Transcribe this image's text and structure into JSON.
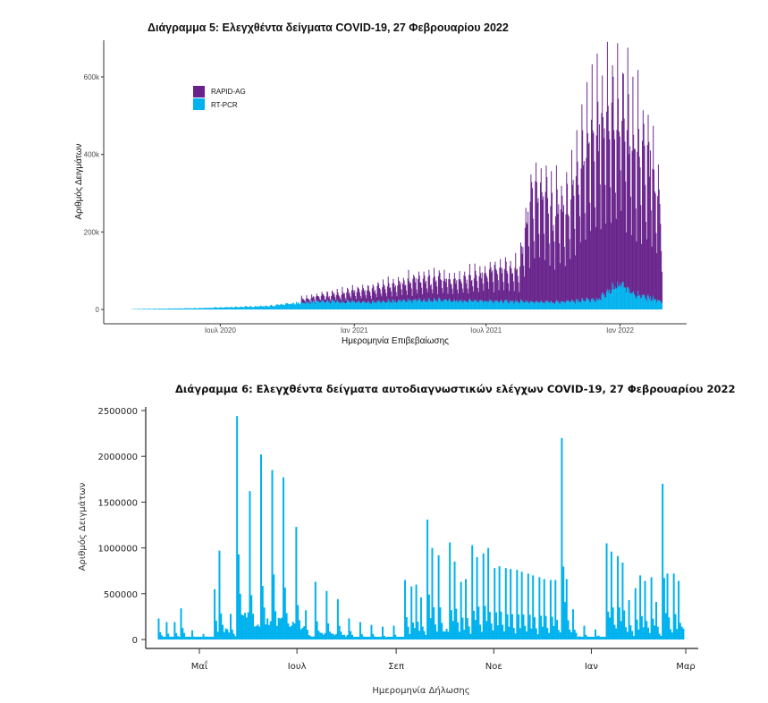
{
  "chart_data": [
    {
      "id": "chart5",
      "type": "bar",
      "stacked": true,
      "title": "Διάγραμμα 5: Ελεγχθέντα δείγματα COVID-19, 27 Φεβρουαρίου 2022",
      "xlabel": "Ημερομηνία Επιβεβαίωσης",
      "ylabel": "Αριθμός Δειγμάτων",
      "x_range": [
        "2020-03-01",
        "2022-02-27"
      ],
      "ylim": [
        0,
        680000
      ],
      "y_ticks": [
        0,
        200000,
        400000,
        600000
      ],
      "y_tick_labels": [
        "0",
        "200k",
        "400k",
        "600k"
      ],
      "x_ticks": [
        "2020-07-01",
        "2021-01-01",
        "2021-07-01",
        "2022-01-01"
      ],
      "x_tick_labels": [
        "Ιουλ 2020",
        "Ιαν 2021",
        "Ιουλ 2021",
        "Ιαν 2022"
      ],
      "legend_position": "top-left",
      "series": [
        {
          "name": "RAPID-AG",
          "color": "#68228B"
        },
        {
          "name": "RT-PCR",
          "color": "#00B2EE"
        }
      ],
      "description": "Daily stacked bars; RT-PCR rises from ~0 (Mar 2020) to ~10-30k by late 2020 and ~20-80k peak in Jan 2022; RAPID-AG appears from ~Nov 2020, weekly peaks growing to ~60-80k by spring 2021, ~100-120k by summer 2021, jump to ~400k+ in Sept 2021, reaching max ~660k in Dec 2021-Jan 2022.",
      "rapid_ag_weekly_peaks": [
        {
          "date": "2020-11-01",
          "value": 15000
        },
        {
          "date": "2020-12-01",
          "value": 25000
        },
        {
          "date": "2021-01-15",
          "value": 45000
        },
        {
          "date": "2021-02-15",
          "value": 55000
        },
        {
          "date": "2021-03-15",
          "value": 70000
        },
        {
          "date": "2021-04-15",
          "value": 80000
        },
        {
          "date": "2021-05-15",
          "value": 75000
        },
        {
          "date": "2021-06-15",
          "value": 90000
        },
        {
          "date": "2021-07-15",
          "value": 120000
        },
        {
          "date": "2021-08-15",
          "value": 115000
        },
        {
          "date": "2021-09-01",
          "value": 400000
        },
        {
          "date": "2021-09-15",
          "value": 400000
        },
        {
          "date": "2021-10-01",
          "value": 345000
        },
        {
          "date": "2021-10-15",
          "value": 330000
        },
        {
          "date": "2021-11-01",
          "value": 450000
        },
        {
          "date": "2021-11-15",
          "value": 560000
        },
        {
          "date": "2021-12-01",
          "value": 650000
        },
        {
          "date": "2021-12-15",
          "value": 620000
        },
        {
          "date": "2022-01-01",
          "value": 640000
        },
        {
          "date": "2022-01-15",
          "value": 580000
        },
        {
          "date": "2022-02-01",
          "value": 520000
        },
        {
          "date": "2022-02-15",
          "value": 490000
        },
        {
          "date": "2022-02-27",
          "value": 320000
        }
      ],
      "rt_pcr_weekly_peaks": [
        {
          "date": "2020-03-01",
          "value": 1000
        },
        {
          "date": "2020-06-01",
          "value": 4000
        },
        {
          "date": "2020-09-01",
          "value": 10000
        },
        {
          "date": "2020-11-15",
          "value": 25000
        },
        {
          "date": "2021-01-15",
          "value": 22000
        },
        {
          "date": "2021-04-01",
          "value": 28000
        },
        {
          "date": "2021-07-15",
          "value": 25000
        },
        {
          "date": "2021-10-01",
          "value": 22000
        },
        {
          "date": "2021-12-01",
          "value": 30000
        },
        {
          "date": "2022-01-01",
          "value": 80000
        },
        {
          "date": "2022-01-20",
          "value": 45000
        },
        {
          "date": "2022-02-27",
          "value": 25000
        }
      ]
    },
    {
      "id": "chart6",
      "type": "bar",
      "title": "Διάγραμμα 6: Ελεγχθέντα δείγματα αυτοδιαγνωστικών ελέγχων COVID-19, 27 Φεβρουαρίου 2022",
      "xlabel": "Ημερομηνία Δήλωσης",
      "ylabel": "Αριθμός Δειγμάτων",
      "x_range": [
        "2021-04-05",
        "2022-02-27"
      ],
      "ylim": [
        0,
        2500000
      ],
      "y_ticks": [
        0,
        500000,
        1000000,
        1500000,
        2000000,
        2500000
      ],
      "y_tick_labels": [
        "0",
        "500000",
        "1000000",
        "1500000",
        "2000000",
        "2500000"
      ],
      "x_ticks": [
        "2021-05-01",
        "2021-07-01",
        "2021-09-01",
        "2021-11-01",
        "2022-01-01",
        "2022-03-01"
      ],
      "x_tick_labels": [
        "Μαΐ",
        "Ιουλ",
        "Σεπ",
        "Νοε",
        "Ιαν",
        "Μαρ"
      ],
      "color": "#00B2EE",
      "weekly_peaks": [
        {
          "date": "2021-04-05",
          "value": 230000
        },
        {
          "date": "2021-04-10",
          "value": 190000
        },
        {
          "date": "2021-04-15",
          "value": 190000
        },
        {
          "date": "2021-04-19",
          "value": 340000
        },
        {
          "date": "2021-04-26",
          "value": 100000
        },
        {
          "date": "2021-05-03",
          "value": 60000
        },
        {
          "date": "2021-05-10",
          "value": 550000
        },
        {
          "date": "2021-05-13",
          "value": 970000
        },
        {
          "date": "2021-05-20",
          "value": 280000
        },
        {
          "date": "2021-05-24",
          "value": 2440000
        },
        {
          "date": "2021-06-01",
          "value": 1620000
        },
        {
          "date": "2021-06-08",
          "value": 2020000
        },
        {
          "date": "2021-06-15",
          "value": 1850000
        },
        {
          "date": "2021-06-22",
          "value": 1770000
        },
        {
          "date": "2021-06-30",
          "value": 1230000
        },
        {
          "date": "2021-07-06",
          "value": 320000
        },
        {
          "date": "2021-07-12",
          "value": 630000
        },
        {
          "date": "2021-07-19",
          "value": 530000
        },
        {
          "date": "2021-07-26",
          "value": 440000
        },
        {
          "date": "2021-08-02",
          "value": 230000
        },
        {
          "date": "2021-08-09",
          "value": 190000
        },
        {
          "date": "2021-08-16",
          "value": 160000
        },
        {
          "date": "2021-08-23",
          "value": 140000
        },
        {
          "date": "2021-08-30",
          "value": 150000
        },
        {
          "date": "2021-09-06",
          "value": 650000
        },
        {
          "date": "2021-09-10",
          "value": 580000
        },
        {
          "date": "2021-09-13",
          "value": 600000
        },
        {
          "date": "2021-09-16",
          "value": 460000
        },
        {
          "date": "2021-09-20",
          "value": 1310000
        },
        {
          "date": "2021-09-23",
          "value": 1000000
        },
        {
          "date": "2021-09-27",
          "value": 920000
        },
        {
          "date": "2021-10-04",
          "value": 1060000
        },
        {
          "date": "2021-10-07",
          "value": 850000
        },
        {
          "date": "2021-10-11",
          "value": 630000
        },
        {
          "date": "2021-10-14",
          "value": 660000
        },
        {
          "date": "2021-10-18",
          "value": 1030000
        },
        {
          "date": "2021-10-21",
          "value": 900000
        },
        {
          "date": "2021-10-25",
          "value": 940000
        },
        {
          "date": "2021-10-28",
          "value": 1000000
        },
        {
          "date": "2021-11-01",
          "value": 780000
        },
        {
          "date": "2021-11-04",
          "value": 800000
        },
        {
          "date": "2021-11-08",
          "value": 780000
        },
        {
          "date": "2021-11-11",
          "value": 770000
        },
        {
          "date": "2021-11-15",
          "value": 760000
        },
        {
          "date": "2021-11-18",
          "value": 740000
        },
        {
          "date": "2021-11-22",
          "value": 720000
        },
        {
          "date": "2021-11-25",
          "value": 700000
        },
        {
          "date": "2021-11-29",
          "value": 680000
        },
        {
          "date": "2021-12-02",
          "value": 660000
        },
        {
          "date": "2021-12-06",
          "value": 650000
        },
        {
          "date": "2021-12-09",
          "value": 650000
        },
        {
          "date": "2021-12-13",
          "value": 2200000
        },
        {
          "date": "2021-12-16",
          "value": 660000
        },
        {
          "date": "2021-12-20",
          "value": 330000
        },
        {
          "date": "2021-12-27",
          "value": 150000
        },
        {
          "date": "2022-01-03",
          "value": 110000
        },
        {
          "date": "2022-01-10",
          "value": 1050000
        },
        {
          "date": "2022-01-13",
          "value": 960000
        },
        {
          "date": "2022-01-17",
          "value": 910000
        },
        {
          "date": "2022-01-20",
          "value": 840000
        },
        {
          "date": "2022-01-24",
          "value": 430000
        },
        {
          "date": "2022-01-28",
          "value": 560000
        },
        {
          "date": "2022-01-31",
          "value": 700000
        },
        {
          "date": "2022-02-03",
          "value": 640000
        },
        {
          "date": "2022-02-07",
          "value": 680000
        },
        {
          "date": "2022-02-10",
          "value": 410000
        },
        {
          "date": "2022-02-14",
          "value": 1700000
        },
        {
          "date": "2022-02-17",
          "value": 720000
        },
        {
          "date": "2022-02-21",
          "value": 720000
        },
        {
          "date": "2022-02-24",
          "value": 640000
        },
        {
          "date": "2022-02-27",
          "value": 120000
        }
      ]
    }
  ]
}
